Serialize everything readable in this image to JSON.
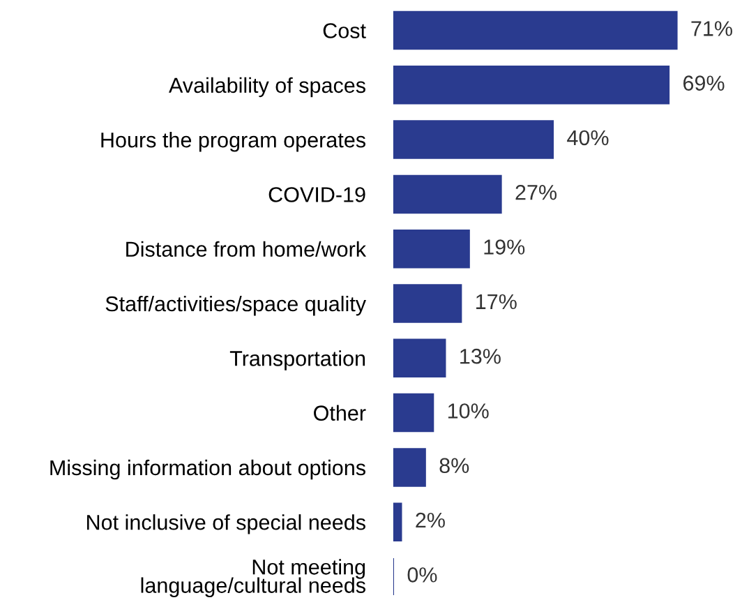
{
  "chart_data": {
    "type": "bar",
    "orientation": "horizontal",
    "categories": [
      "Cost",
      "Availability of spaces",
      "Hours the program operates",
      "COVID-19",
      "Distance from home/work",
      "Staff/activities/space quality",
      "Transportation",
      "Other",
      "Missing information about options",
      "Not inclusive of special needs",
      "Not meeting\nlanguage/cultural needs"
    ],
    "values": [
      71,
      69,
      40,
      27,
      19,
      17,
      13,
      10,
      8,
      2,
      0
    ],
    "value_labels": [
      "71%",
      "69%",
      "40%",
      "27%",
      "19%",
      "17%",
      "13%",
      "10%",
      "8%",
      "2%",
      "0%"
    ],
    "color": "#2a3b8f",
    "grid": false,
    "legend": false
  }
}
